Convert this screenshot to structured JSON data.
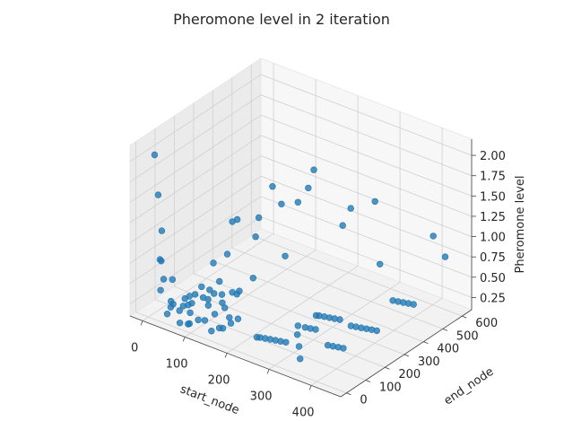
{
  "chart_data": {
    "type": "scatter",
    "title": "Pheromone level in 2 iteration",
    "xlabel": "start_node",
    "ylabel": "end_node",
    "zlabel": "Pheromone level",
    "xlim": [
      -30,
      470
    ],
    "ylim": [
      -30,
      650
    ],
    "zlim": [
      0.1,
      2.2
    ],
    "xticks": [
      0,
      100,
      200,
      300,
      400
    ],
    "yticks": [
      0,
      100,
      200,
      300,
      400,
      500,
      600
    ],
    "zticks": [
      0.25,
      0.5,
      0.75,
      1.0,
      1.25,
      1.5,
      1.75,
      2.0
    ],
    "xtick_labels": [
      "0",
      "100",
      "200",
      "300",
      "400"
    ],
    "ytick_labels": [
      "0",
      "100",
      "200",
      "300",
      "400",
      "500",
      "600"
    ],
    "ztick_labels": [
      "0.25",
      "0.50",
      "0.75",
      "1.00",
      "1.25",
      "1.50",
      "1.75",
      "2.00"
    ],
    "grid": true,
    "marker_color": "#1f77b4",
    "points": [
      [
        10,
        10,
        2.1
      ],
      [
        14,
        20,
        1.6
      ],
      [
        18,
        30,
        1.15
      ],
      [
        16,
        25,
        0.8
      ],
      [
        20,
        35,
        0.55
      ],
      [
        22,
        15,
        0.45
      ],
      [
        35,
        40,
        0.3
      ],
      [
        60,
        30,
        0.25
      ],
      [
        80,
        50,
        0.35
      ],
      [
        100,
        40,
        0.2
      ],
      [
        90,
        20,
        0.3
      ],
      [
        70,
        60,
        0.4
      ],
      [
        50,
        80,
        0.3
      ],
      [
        40,
        10,
        0.2
      ],
      [
        110,
        70,
        0.35
      ],
      [
        120,
        30,
        0.25
      ],
      [
        130,
        60,
        0.3
      ],
      [
        85,
        90,
        0.5
      ],
      [
        95,
        110,
        0.45
      ],
      [
        105,
        80,
        0.4
      ],
      [
        65,
        100,
        0.35
      ],
      [
        75,
        120,
        0.3
      ],
      [
        55,
        60,
        0.25
      ],
      [
        45,
        30,
        0.3
      ],
      [
        140,
        90,
        0.35
      ],
      [
        150,
        40,
        0.2
      ],
      [
        160,
        70,
        0.3
      ],
      [
        125,
        110,
        0.35
      ],
      [
        115,
        130,
        0.4
      ],
      [
        100,
        150,
        0.5
      ],
      [
        85,
        20,
        0.15
      ],
      [
        95,
        5,
        0.2
      ],
      [
        30,
        50,
        0.2
      ],
      [
        60,
        75,
        0.25
      ],
      [
        70,
        10,
        0.15
      ],
      [
        135,
        140,
        0.45
      ],
      [
        155,
        120,
        0.5
      ],
      [
        170,
        100,
        0.6
      ],
      [
        180,
        150,
        0.7
      ],
      [
        145,
        10,
        0.2
      ],
      [
        165,
        25,
        0.25
      ],
      [
        175,
        45,
        0.3
      ],
      [
        185,
        60,
        0.35
      ],
      [
        110,
        100,
        0.45
      ],
      [
        25,
        70,
        0.5
      ],
      [
        12,
        40,
        0.75
      ],
      [
        60,
        330,
        0.9
      ],
      [
        90,
        360,
        0.7
      ],
      [
        70,
        420,
        0.8
      ],
      [
        75,
        480,
        1.1
      ],
      [
        110,
        450,
        1.0
      ],
      [
        30,
        370,
        0.75
      ],
      [
        50,
        300,
        0.5
      ],
      [
        40,
        250,
        0.45
      ],
      [
        160,
        360,
        0.6
      ],
      [
        155,
        520,
        1.4
      ],
      [
        160,
        480,
        1.25
      ],
      [
        140,
        470,
        1.05
      ],
      [
        260,
        440,
        1.05
      ],
      [
        270,
        460,
        1.25
      ],
      [
        300,
        520,
        1.3
      ],
      [
        430,
        600,
        0.75
      ],
      [
        420,
        560,
        1.05
      ],
      [
        330,
        480,
        0.65
      ],
      [
        260,
        10,
        0.35
      ],
      [
        270,
        15,
        0.35
      ],
      [
        280,
        20,
        0.35
      ],
      [
        290,
        25,
        0.35
      ],
      [
        300,
        30,
        0.35
      ],
      [
        310,
        35,
        0.35
      ],
      [
        255,
        5,
        0.35
      ],
      [
        300,
        230,
        0.35
      ],
      [
        310,
        235,
        0.35
      ],
      [
        320,
        240,
        0.35
      ],
      [
        330,
        245,
        0.35
      ],
      [
        340,
        250,
        0.35
      ],
      [
        295,
        225,
        0.35
      ],
      [
        300,
        120,
        0.4
      ],
      [
        315,
        125,
        0.4
      ],
      [
        325,
        130,
        0.4
      ],
      [
        335,
        135,
        0.4
      ],
      [
        310,
        95,
        0.35
      ],
      [
        380,
        220,
        0.4
      ],
      [
        390,
        225,
        0.4
      ],
      [
        400,
        230,
        0.4
      ],
      [
        410,
        235,
        0.4
      ],
      [
        420,
        240,
        0.4
      ],
      [
        430,
        245,
        0.4
      ],
      [
        395,
        405,
        0.45
      ],
      [
        405,
        410,
        0.45
      ],
      [
        415,
        415,
        0.45
      ],
      [
        425,
        420,
        0.45
      ],
      [
        435,
        425,
        0.45
      ],
      [
        380,
        100,
        0.35
      ],
      [
        390,
        105,
        0.35
      ],
      [
        400,
        110,
        0.35
      ],
      [
        410,
        115,
        0.35
      ],
      [
        360,
        0,
        0.3
      ],
      [
        330,
        60,
        0.3
      ]
    ]
  }
}
